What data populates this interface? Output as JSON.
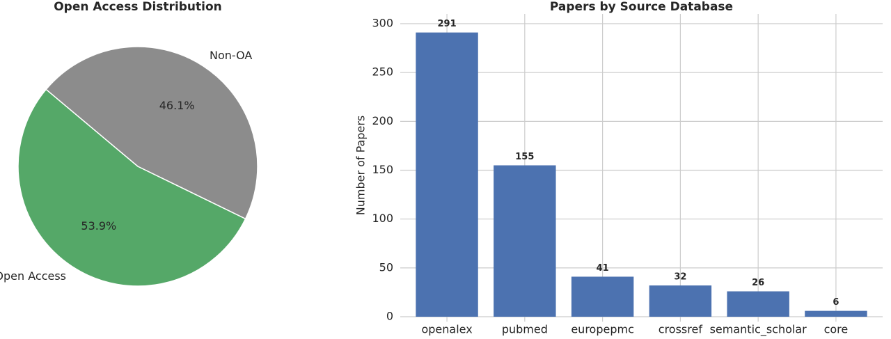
{
  "chart_data": [
    {
      "type": "pie",
      "title": "Open Access Distribution",
      "categories": [
        "Open Access",
        "Non-OA"
      ],
      "values": [
        53.9,
        46.1
      ],
      "value_labels": [
        "53.9%",
        "46.1%"
      ],
      "colors": [
        "#55a868",
        "#8c8c8c"
      ]
    },
    {
      "type": "bar",
      "title": "Papers by Source Database",
      "y_label": "Number of Papers",
      "categories": [
        "openalex",
        "pubmed",
        "europepmc",
        "crossref",
        "semantic_scholar",
        "core"
      ],
      "values": [
        291,
        155,
        41,
        32,
        26,
        6
      ],
      "color": "#4c72b0",
      "ylim": [
        0,
        310
      ],
      "yticks": [
        0,
        50,
        100,
        150,
        200,
        250,
        300
      ],
      "grid": true
    }
  ]
}
